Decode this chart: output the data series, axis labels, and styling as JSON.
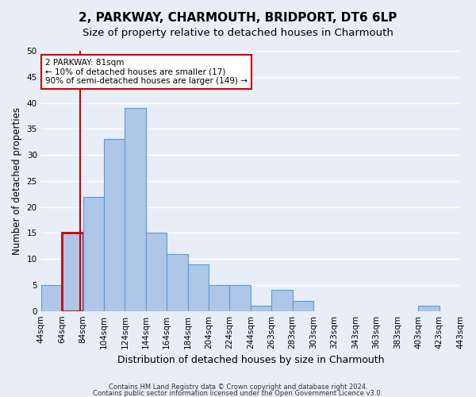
{
  "title": "2, PARKWAY, CHARMOUTH, BRIDPORT, DT6 6LP",
  "subtitle": "Size of property relative to detached houses in Charmouth",
  "xlabel": "Distribution of detached houses by size in Charmouth",
  "ylabel": "Number of detached properties",
  "bar_values": [
    5,
    15,
    22,
    33,
    39,
    15,
    11,
    9,
    5,
    5,
    1,
    4,
    2,
    0,
    0,
    0,
    0,
    0,
    1,
    0
  ],
  "x_labels": [
    "44sqm",
    "64sqm",
    "84sqm",
    "104sqm",
    "124sqm",
    "144sqm",
    "164sqm",
    "184sqm",
    "204sqm",
    "224sqm",
    "244sqm",
    "263sqm",
    "283sqm",
    "303sqm",
    "323sqm",
    "343sqm",
    "363sqm",
    "383sqm",
    "403sqm",
    "423sqm",
    "443sqm"
  ],
  "bar_color": "#aec6e8",
  "bar_edge_color": "#5b9bd5",
  "highlight_bar_index": 1,
  "highlight_color": "#cc0000",
  "annotation_text": "2 PARKWAY: 81sqm\n← 10% of detached houses are smaller (17)\n90% of semi-detached houses are larger (149) →",
  "annotation_box_color": "#ffffff",
  "annotation_box_edge": "#cc0000",
  "footnote1": "Contains HM Land Registry data © Crown copyright and database right 2024.",
  "footnote2": "Contains public sector information licensed under the Open Government Licence v3.0.",
  "ylim": [
    0,
    50
  ],
  "background_color": "#e8eef8",
  "plot_background": "#e8eef8",
  "grid_color": "#ffffff",
  "title_fontsize": 11,
  "subtitle_fontsize": 9.5,
  "tick_fontsize": 7.5,
  "ylabel_fontsize": 8.5,
  "xlabel_fontsize": 9
}
